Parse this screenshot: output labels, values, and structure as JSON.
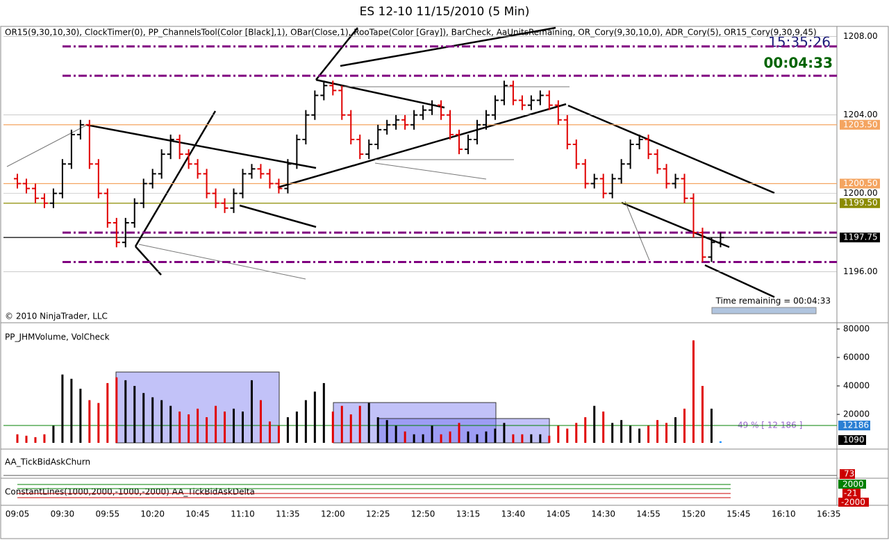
{
  "title": "ES 12-10  11/15/2010 (5 Min)",
  "indicators": "OR15(9,30,10,30),  ClockTimer(0),  PP_ChannelsTool(Color [Black],1),  OBar(Close,1),  RooTape(Color [Gray]),  BarCheck,  AaUnitsRemaining,  OR_Cory(9,30,10,0),  ADR_Cory(5),  OR15_Cory(9,30,9,45)",
  "clock": "15:35:26",
  "timer": "00:04:33",
  "copyright": "© 2010 NinjaTrader, LLC",
  "time_remaining": "Time remaining = 00:04:33",
  "churn_panel": {
    "title": "AA_TickBidAskChurn",
    "label": "73"
  },
  "delta_panel": {
    "title": "ConstantLines(1000,2000,-1000,-2000)  AA_TickBidAskDelta",
    "labels": [
      "2000",
      "-21",
      "-2000"
    ]
  },
  "chart_data": [
    {
      "type": "ohlc",
      "colors": {
        "up": "#000000",
        "down": "#e00000"
      },
      "categories": [
        "09:05",
        null,
        null,
        null,
        null,
        "09:30",
        null,
        null,
        null,
        null,
        "09:55",
        null,
        null,
        null,
        null,
        "10:20",
        null,
        null,
        null,
        null,
        "10:45",
        null,
        null,
        null,
        null,
        "11:10",
        null,
        null,
        null,
        null,
        "11:35",
        null,
        null,
        null,
        null,
        "12:00",
        null,
        null,
        null,
        null,
        "12:25",
        null,
        null,
        null,
        null,
        "12:50",
        null,
        null,
        null,
        null,
        "13:15",
        null,
        null,
        null,
        null,
        "13:40",
        null,
        null,
        null,
        null,
        "14:05",
        null,
        null,
        null,
        null,
        "14:30",
        null,
        null,
        null,
        null,
        "14:55",
        null,
        null,
        null,
        null,
        "15:20",
        null,
        null,
        null,
        null,
        "15:45",
        null,
        null,
        null,
        null,
        "16:10",
        null,
        null,
        null,
        null,
        "16:35"
      ],
      "open": [
        1200.75,
        1200.5,
        1200.25,
        1199.75,
        1199.5,
        1200,
        1201.5,
        1203,
        1203.5,
        1201.5,
        1200,
        1198.5,
        1197.5,
        1198.5,
        1199.5,
        1200.5,
        1201,
        1202,
        1202.75,
        1202,
        1201.5,
        1201,
        1200,
        1199.5,
        1199.25,
        1200,
        1201,
        1201.25,
        1201,
        1200.5,
        1200.25,
        1201.5,
        1202.75,
        1204,
        1205,
        1205.5,
        1205.25,
        1204,
        1202.75,
        1202,
        1202.5,
        1203.25,
        1203.5,
        1203.75,
        1203.5,
        1204,
        1204.25,
        1204.5,
        1204,
        1203,
        1202.25,
        1202.75,
        1203.5,
        1204,
        1204.75,
        1205.5,
        1204.75,
        1204.5,
        1204.75,
        1205,
        1204.5,
        1203.75,
        1202.5,
        1201.5,
        1200.5,
        1200.75,
        1200,
        1200.75,
        1201.5,
        1202.5,
        1202.75,
        1202,
        1201.25,
        1200.5,
        1200.75,
        1199.75,
        1198,
        1196.75,
        1197.5,
        null,
        null,
        null,
        null,
        null,
        null,
        null,
        null,
        null,
        null,
        null,
        null
      ],
      "high": [
        1201,
        1200.75,
        1200.5,
        1200,
        1200.25,
        1201.75,
        1203.25,
        1203.75,
        1203.75,
        1201.75,
        1200.25,
        1198.75,
        1198.75,
        1199.75,
        1200.75,
        1201.25,
        1202.25,
        1203,
        1203,
        1202.25,
        1201.75,
        1201.25,
        1200.25,
        1199.75,
        1200.25,
        1201.25,
        1201.5,
        1201.5,
        1201.25,
        1200.75,
        1201.75,
        1203,
        1204.25,
        1205.25,
        1205.75,
        1205.75,
        1205.5,
        1204.25,
        1203,
        1202.75,
        1203.5,
        1203.75,
        1204,
        1204,
        1204.25,
        1204.5,
        1204.75,
        1204.75,
        1204.25,
        1203.25,
        1203,
        1203.75,
        1204.25,
        1205,
        1205.75,
        1205.75,
        1205,
        1205,
        1205.25,
        1205.25,
        1204.75,
        1204,
        1202.75,
        1201.75,
        1201,
        1201,
        1201,
        1201.75,
        1202.75,
        1203,
        1203,
        1202.25,
        1201.5,
        1201,
        1201,
        1200,
        1198.25,
        1197.75,
        1198,
        null,
        null,
        null,
        null,
        null,
        null,
        null,
        null,
        null,
        null,
        null,
        null
      ],
      "low": [
        1200.25,
        1200,
        1199.5,
        1199.25,
        1199.25,
        1199.75,
        1201.25,
        1202.75,
        1201.25,
        1199.75,
        1198.25,
        1197.25,
        1197.25,
        1198.25,
        1199.25,
        1200.25,
        1200.75,
        1201.75,
        1201.75,
        1201.25,
        1200.75,
        1199.75,
        1199.25,
        1199,
        1199,
        1199.75,
        1200.75,
        1200.75,
        1200.25,
        1200,
        1200,
        1201.25,
        1202.5,
        1203.75,
        1204.75,
        1205,
        1203.75,
        1202.5,
        1201.75,
        1201.75,
        1202.25,
        1203,
        1203.25,
        1203.25,
        1203.25,
        1203.75,
        1204,
        1203.75,
        1202.75,
        1202,
        1202,
        1202.5,
        1203.25,
        1203.75,
        1204.5,
        1204.5,
        1204.25,
        1204.25,
        1204.5,
        1204.25,
        1203.5,
        1202.25,
        1201.25,
        1200.25,
        1200.25,
        1199.75,
        1199.75,
        1200.5,
        1201.25,
        1202.25,
        1201.75,
        1201,
        1200.25,
        1200.25,
        1199.5,
        1197.75,
        1196.5,
        1196.5,
        1197.25,
        null,
        null,
        null,
        null,
        null,
        null,
        null,
        null,
        null,
        null,
        null,
        null
      ],
      "close": [
        1200.5,
        1200.25,
        1199.75,
        1199.5,
        1200,
        1201.5,
        1203,
        1203.5,
        1201.5,
        1200,
        1198.5,
        1197.5,
        1198.5,
        1199.5,
        1200.5,
        1201,
        1202,
        1202.75,
        1202,
        1201.5,
        1201,
        1200,
        1199.5,
        1199.25,
        1200,
        1201,
        1201.25,
        1201,
        1200.5,
        1200.25,
        1201.5,
        1202.75,
        1204,
        1205,
        1205.5,
        1205.25,
        1204,
        1202.75,
        1202,
        1202.5,
        1203.25,
        1203.5,
        1203.75,
        1203.5,
        1204,
        1204.25,
        1204.5,
        1204,
        1203,
        1202.25,
        1202.75,
        1203.5,
        1204,
        1204.75,
        1205.5,
        1204.75,
        1204.5,
        1204.75,
        1205,
        1204.5,
        1203.75,
        1202.5,
        1201.5,
        1200.5,
        1200.75,
        1200,
        1200.75,
        1201.5,
        1202.5,
        1202.75,
        1202,
        1201.25,
        1200.5,
        1200.75,
        1199.75,
        1198,
        1196.75,
        1197.5,
        1197.75,
        null,
        null,
        null,
        null,
        null,
        null,
        null,
        null,
        null,
        null,
        null,
        null
      ],
      "ylim": [
        1193.4,
        1208.45
      ],
      "yticks": [
        {
          "value": 1196,
          "label": "1196.00"
        },
        {
          "value": 1200,
          "label": "1200.00"
        },
        {
          "value": 1204,
          "label": "1204.00"
        },
        {
          "value": 1208,
          "label": "1208.00"
        }
      ],
      "levels": [
        {
          "value": 1203.5,
          "label": "1203.50",
          "color": "#f4a460"
        },
        {
          "value": 1200.5,
          "label": "1200.50",
          "color": "#f4a460"
        },
        {
          "value": 1199.5,
          "label": "1199.50",
          "color": "#8b8b00"
        },
        {
          "value": 1197.75,
          "label": "1197.75",
          "color": "#000000"
        }
      ],
      "dash_levels": [
        1207.5,
        1206,
        1198,
        1196.5
      ],
      "dash_color": "#800080"
    },
    {
      "type": "bar",
      "title": "PP_JHMVolume, VolCheck",
      "colors": {
        "up": "#000000",
        "down": "#e00000"
      },
      "values": [
        6000,
        5000,
        4000,
        6000,
        12000,
        48000,
        45000,
        38000,
        30000,
        28000,
        42000,
        46000,
        44000,
        40000,
        35000,
        32000,
        30000,
        26000,
        22000,
        20000,
        24000,
        18000,
        26000,
        22000,
        24000,
        22000,
        44000,
        30000,
        15000,
        12000,
        18000,
        22000,
        30000,
        36000,
        42000,
        22000,
        26000,
        20000,
        26000,
        28000,
        18000,
        16000,
        12000,
        8000,
        6000,
        6000,
        12000,
        6000,
        8000,
        14000,
        8000,
        6000,
        8000,
        10000,
        14000,
        6000,
        6000,
        6000,
        6000,
        5000,
        12000,
        10000,
        14000,
        18000,
        26000,
        22000,
        14000,
        16000,
        12000,
        10000,
        12000,
        16000,
        14000,
        18000,
        24000,
        72000,
        40000,
        24000,
        1090
      ],
      "ylim": [
        -3400,
        83900
      ],
      "yticks": [
        20000,
        40000,
        60000,
        80000
      ],
      "average": {
        "value": 12186,
        "label": "12186",
        "note": "49 % [ 12 186 ]"
      },
      "last_label": "1090"
    }
  ]
}
